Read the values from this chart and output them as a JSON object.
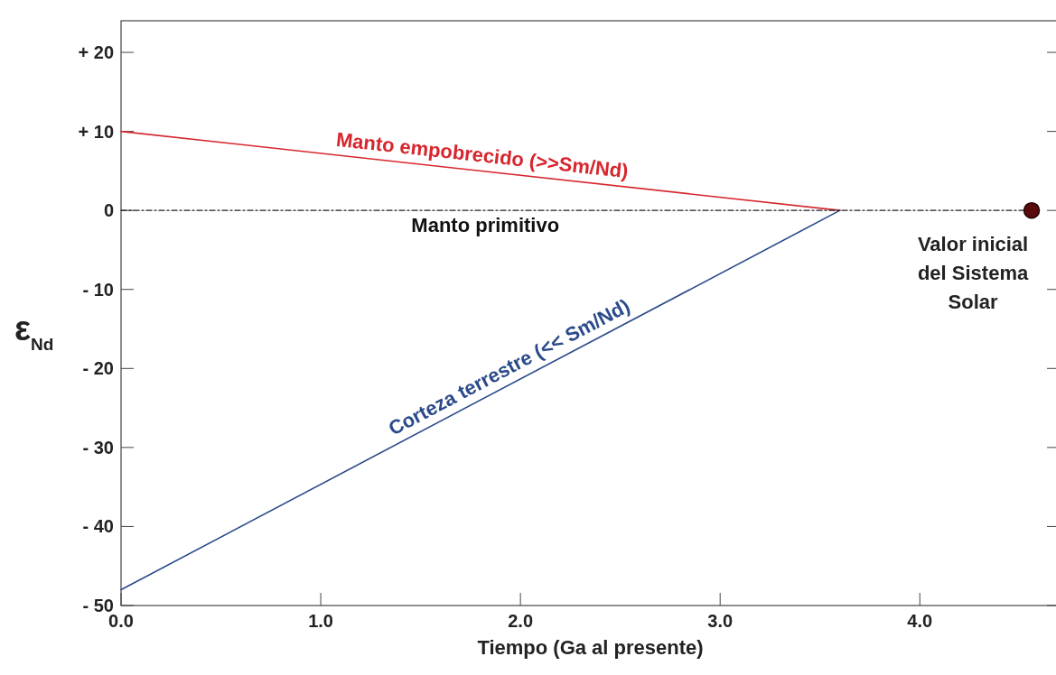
{
  "chart_data": {
    "type": "line",
    "xlabel": "Tiempo (Ga al presente)",
    "ylabel": "ε$_{Nd}$",
    "xlim": [
      0,
      4.7
    ],
    "xticks": [
      {
        "value": 0,
        "label": "0.0"
      },
      {
        "value": 1,
        "label": "1.0"
      },
      {
        "value": 2,
        "label": "2.0"
      },
      {
        "value": 3,
        "label": "3.0"
      },
      {
        "value": 4,
        "label": "4.0"
      }
    ],
    "ylim": [
      -50,
      24
    ],
    "yticks": [
      {
        "value": -50,
        "label": "- 50"
      },
      {
        "value": -40,
        "label": "- 40"
      },
      {
        "value": -30,
        "label": "- 30"
      },
      {
        "value": -20,
        "label": "- 20"
      },
      {
        "value": -10,
        "label": "- 10"
      },
      {
        "value": 0,
        "label": "0"
      },
      {
        "value": 10,
        "label": "+ 10"
      },
      {
        "value": 20,
        "label": "+ 20"
      }
    ],
    "grid": false,
    "series": [
      {
        "name": "Manto empobrecido (>>Sm/Nd)",
        "color": "#d7262e",
        "x": [
          0,
          3.6
        ],
        "values": [
          10,
          0
        ],
        "line_style": "solid"
      },
      {
        "name": "Corteza terrestre (<< Sm/Nd)",
        "color": "#2a4a8a",
        "x": [
          0,
          3.6
        ],
        "values": [
          -48,
          0
        ],
        "line_style": "solid"
      },
      {
        "name": "Manto primitivo",
        "color": "#222222",
        "x": [
          0,
          4.56
        ],
        "values": [
          0,
          0
        ],
        "line_style": "dashed"
      },
      {
        "name": "Valor inicial del Sistema Solar",
        "type": "scatter",
        "marker": "circle",
        "color": "#5a0c0c",
        "x": [
          4.56
        ],
        "values": [
          0
        ]
      }
    ]
  }
}
